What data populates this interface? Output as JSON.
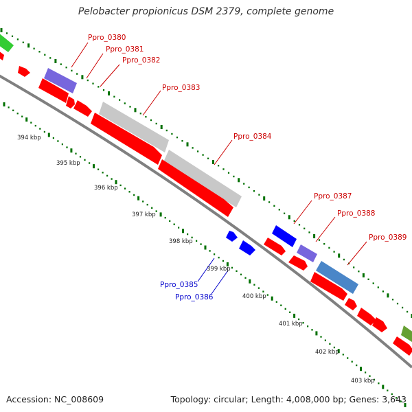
{
  "title": "Pelobacter propionicus DSM 2379, complete genome",
  "footer": {
    "accession": "Accession: NC_008609",
    "summary": "Topology: circular; Length: 4,008,000 bp; Genes: 3,643"
  },
  "colors": {
    "cds_forward": "#ff0000",
    "cds_reverse": "#0000ff",
    "rna": "#c0c0c0",
    "backbone": "#808080",
    "tick": "#007000",
    "label_forward": "#cc0000",
    "label_reverse": "#0000cc"
  },
  "ticks": [
    {
      "label": "394 kbp"
    },
    {
      "label": "395 kbp"
    },
    {
      "label": "396 kbp"
    },
    {
      "label": "397 kbp"
    },
    {
      "label": "398 kbp"
    },
    {
      "label": "399 kbp"
    },
    {
      "label": "400 kbp"
    },
    {
      "label": "401 kbp"
    },
    {
      "label": "402 kbp"
    },
    {
      "label": "403 kbp"
    }
  ],
  "gene_labels": [
    {
      "text": "Ppro_0380",
      "strand": "forward"
    },
    {
      "text": "Ppro_0381",
      "strand": "forward"
    },
    {
      "text": "Ppro_0382",
      "strand": "forward"
    },
    {
      "text": "Ppro_0383",
      "strand": "forward"
    },
    {
      "text": "Ppro_0384",
      "strand": "forward"
    },
    {
      "text": "Ppro_0385",
      "strand": "reverse"
    },
    {
      "text": "Ppro_0386",
      "strand": "reverse"
    },
    {
      "text": "Ppro_0387",
      "strand": "forward"
    },
    {
      "text": "Ppro_0388",
      "strand": "forward"
    },
    {
      "text": "Ppro_0389",
      "strand": "forward"
    }
  ]
}
